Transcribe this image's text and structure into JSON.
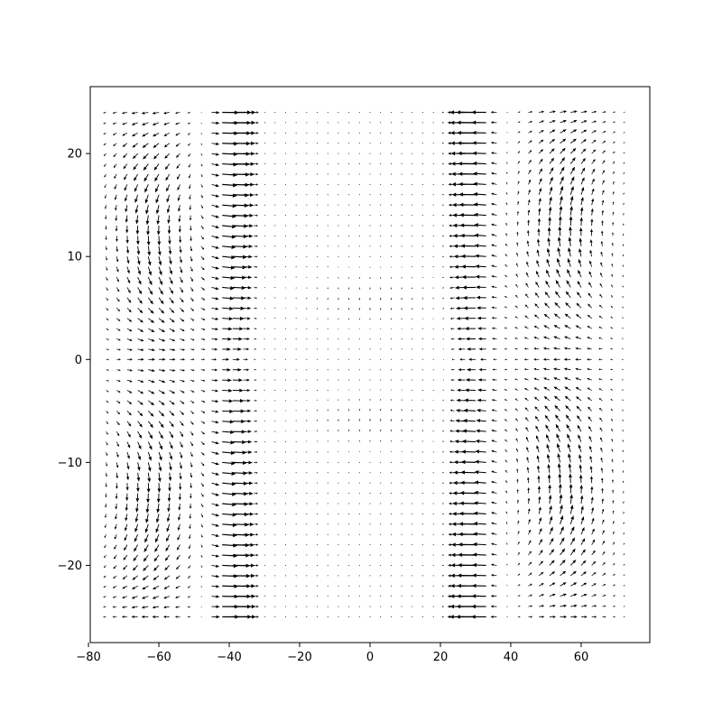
{
  "chart_data": {
    "type": "quiver",
    "title": "",
    "xlabel": "",
    "ylabel": "",
    "xlim": [
      -79.5,
      79.5
    ],
    "ylim": [
      -27.5,
      26.5
    ],
    "x_ticks": [
      -80,
      -60,
      -40,
      -20,
      0,
      20,
      40,
      60
    ],
    "x_tick_labels": [
      "−80",
      "−60",
      "−40",
      "−20",
      "0",
      "20",
      "40",
      "60"
    ],
    "y_ticks": [
      -20,
      -10,
      0,
      10,
      20
    ],
    "y_tick_labels": [
      "−20",
      "−10",
      "0",
      "10",
      "20"
    ],
    "grid": false,
    "legend": "none",
    "arrow_color": "#000000",
    "grid_points": {
      "x_start": -75,
      "x_step": 3,
      "x_count": 50,
      "y_start": -25,
      "y_step": 1,
      "y_count": 50
    },
    "field": {
      "description_of_values": "approximate vector field (u, v) read from the plot",
      "left_core_x": -40,
      "right_core_x": 30,
      "core_half_width": 6,
      "max_magnitude": 1.0
    }
  }
}
